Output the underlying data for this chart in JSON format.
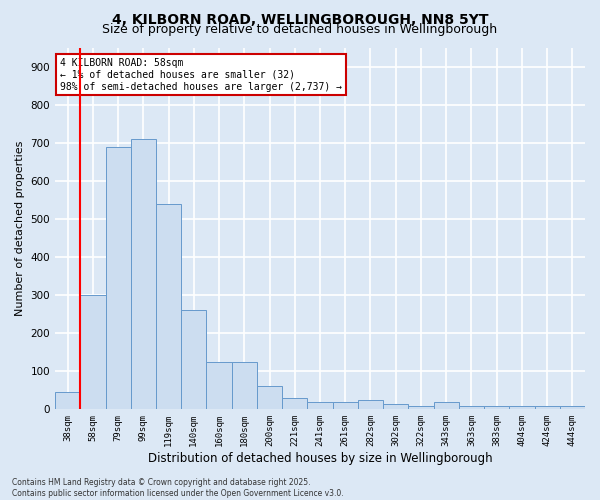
{
  "title": "4, KILBORN ROAD, WELLINGBOROUGH, NN8 5YT",
  "subtitle": "Size of property relative to detached houses in Wellingborough",
  "xlabel": "Distribution of detached houses by size in Wellingborough",
  "ylabel": "Number of detached properties",
  "categories": [
    "38sqm",
    "58sqm",
    "79sqm",
    "99sqm",
    "119sqm",
    "140sqm",
    "160sqm",
    "180sqm",
    "200sqm",
    "221sqm",
    "241sqm",
    "261sqm",
    "282sqm",
    "302sqm",
    "322sqm",
    "343sqm",
    "363sqm",
    "383sqm",
    "404sqm",
    "424sqm",
    "444sqm"
  ],
  "values": [
    45,
    300,
    690,
    710,
    540,
    260,
    125,
    125,
    60,
    30,
    20,
    20,
    25,
    15,
    10,
    20,
    10,
    10,
    8,
    8,
    8
  ],
  "bar_color": "#ccddf0",
  "bar_edge_color": "#6699cc",
  "red_line_index": 1,
  "ylim": [
    0,
    950
  ],
  "yticks": [
    0,
    100,
    200,
    300,
    400,
    500,
    600,
    700,
    800,
    900
  ],
  "annotation_text": "4 KILBORN ROAD: 58sqm\n← 1% of detached houses are smaller (32)\n98% of semi-detached houses are larger (2,737) →",
  "annotation_box_facecolor": "#ffffff",
  "annotation_box_edgecolor": "#cc0000",
  "footer_line1": "Contains HM Land Registry data © Crown copyright and database right 2025.",
  "footer_line2": "Contains public sector information licensed under the Open Government Licence v3.0.",
  "bg_color": "#dce8f5",
  "plot_bg_color": "#dce8f5",
  "grid_color": "#ffffff",
  "title_fontsize": 10,
  "subtitle_fontsize": 9,
  "tick_fontsize": 6.5,
  "ylabel_fontsize": 8,
  "xlabel_fontsize": 8.5,
  "annotation_fontsize": 7,
  "footer_fontsize": 5.5
}
